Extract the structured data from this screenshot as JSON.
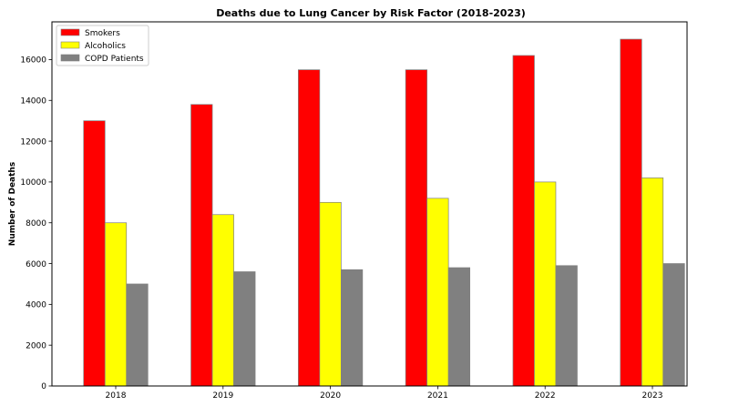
{
  "chart_data": {
    "type": "bar",
    "title": "Deaths due to Lung Cancer by Risk Factor (2018-2023)",
    "xlabel": "",
    "ylabel": "Number of Deaths",
    "categories": [
      "2018",
      "2019",
      "2020",
      "2021",
      "2022",
      "2023"
    ],
    "series": [
      {
        "name": "Smokers",
        "color": "#ff0000",
        "values": [
          13000,
          13800,
          15500,
          15500,
          16200,
          17000
        ]
      },
      {
        "name": "Alcoholics",
        "color": "#ffff00",
        "values": [
          8000,
          8400,
          9000,
          9200,
          10000,
          10200
        ]
      },
      {
        "name": "COPD Patients",
        "color": "#808080",
        "values": [
          5000,
          5600,
          5700,
          5800,
          5900,
          6000
        ]
      }
    ],
    "yticks": [
      0,
      2000,
      4000,
      6000,
      8000,
      10000,
      12000,
      14000,
      16000
    ],
    "ylim": [
      0,
      17850
    ],
    "grid": false,
    "legend_position": "top-left"
  }
}
